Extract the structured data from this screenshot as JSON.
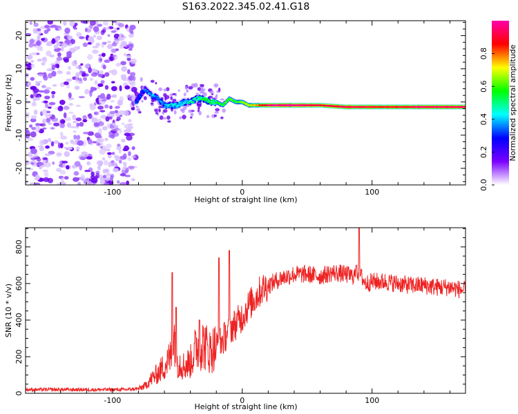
{
  "title": "S163.2022.345.02.41.G18",
  "chart_data": [
    {
      "type": "heatmap",
      "xlabel": "Height of straight line (km)",
      "ylabel": "Frequency (Hz)",
      "xlim": [
        -167,
        172
      ],
      "ylim": [
        -25,
        24.5
      ],
      "xticks": [
        -100,
        0,
        100
      ],
      "yticks": [
        -20,
        -10,
        0,
        10,
        20
      ],
      "colorbar": {
        "label": "Normalized spectral amplitude",
        "range": [
          0,
          1
        ],
        "ticks": [
          0.0,
          0.2,
          0.4,
          0.6,
          0.8
        ],
        "colors": [
          "#ffffff",
          "#7a00ff",
          "#0000ff",
          "#00ffff",
          "#00ff00",
          "#ffff00",
          "#ff0000",
          "#ff00aa"
        ]
      },
      "noise_region_x_max": -82,
      "ridge": {
        "x": [
          -82,
          -75,
          -70,
          -65,
          -60,
          -55,
          -50,
          -45,
          -40,
          -35,
          -30,
          -25,
          -20,
          -15,
          -10,
          -5,
          0,
          5,
          10,
          20,
          40,
          60,
          80,
          100,
          120,
          140,
          160,
          172
        ],
        "y": [
          0,
          4,
          2,
          1,
          -1,
          -1,
          -1,
          0,
          0,
          1,
          1,
          0,
          0,
          -1,
          1,
          0,
          0,
          -1,
          -1,
          -1,
          -1,
          -1,
          -1.5,
          -1.5,
          -1.5,
          -1.5,
          -1.5,
          -1.5
        ],
        "amplitude": [
          0.3,
          0.3,
          0.35,
          0.35,
          0.35,
          0.4,
          0.4,
          0.4,
          0.45,
          0.45,
          0.5,
          0.5,
          0.5,
          0.55,
          0.55,
          0.55,
          0.6,
          0.65,
          0.7,
          0.9,
          0.95,
          0.85,
          0.9,
          0.85,
          0.85,
          0.9,
          0.9,
          0.9
        ]
      }
    },
    {
      "type": "line",
      "xlabel": "Height of straight line (km)",
      "ylabel": "SNR (10 * v/v)",
      "xlim": [
        -167,
        172
      ],
      "ylim": [
        0,
        905
      ],
      "xticks": [
        -100,
        0,
        100
      ],
      "yticks": [
        0,
        200,
        400,
        600,
        800
      ],
      "color": "#ee2222",
      "x": [
        -167,
        -150,
        -130,
        -110,
        -90,
        -80,
        -75,
        -70,
        -65,
        -60,
        -55,
        -52,
        -50,
        -45,
        -40,
        -35,
        -30,
        -25,
        -20,
        -15,
        -10,
        -5,
        0,
        5,
        10,
        15,
        20,
        30,
        40,
        50,
        60,
        70,
        80,
        85,
        90,
        95,
        100,
        110,
        120,
        130,
        140,
        150,
        160,
        172
      ],
      "y": [
        20,
        20,
        20,
        20,
        20,
        25,
        40,
        80,
        110,
        150,
        200,
        320,
        180,
        150,
        170,
        260,
        270,
        230,
        260,
        290,
        350,
        380,
        420,
        480,
        520,
        570,
        590,
        630,
        650,
        650,
        640,
        660,
        650,
        640,
        660,
        600,
        610,
        610,
        600,
        590,
        590,
        580,
        580,
        560
      ],
      "spikes": [
        {
          "x": -54,
          "y": 660
        },
        {
          "x": -51,
          "y": 470
        },
        {
          "x": -33,
          "y": 400
        },
        {
          "x": -18,
          "y": 740
        },
        {
          "x": -10,
          "y": 780
        },
        {
          "x": 90,
          "y": 905
        },
        {
          "x": 88,
          "y": 700
        }
      ]
    }
  ]
}
